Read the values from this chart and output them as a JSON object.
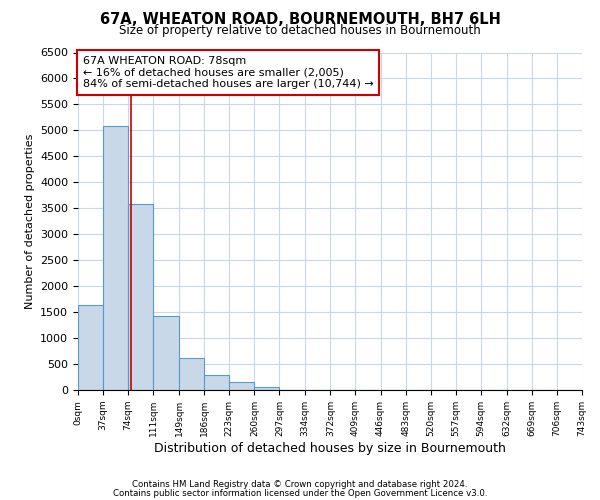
{
  "title": "67A, WHEATON ROAD, BOURNEMOUTH, BH7 6LH",
  "subtitle": "Size of property relative to detached houses in Bournemouth",
  "xlabel": "Distribution of detached houses by size in Bournemouth",
  "ylabel": "Number of detached properties",
  "bin_edges": [
    0,
    37,
    74,
    111,
    149,
    186,
    223,
    260,
    297,
    334,
    372,
    409,
    446,
    483,
    520,
    557,
    594,
    632,
    669,
    706,
    743
  ],
  "bin_counts": [
    1630,
    5080,
    3590,
    1430,
    610,
    295,
    155,
    55,
    0,
    0,
    0,
    0,
    0,
    0,
    0,
    0,
    0,
    0,
    0,
    0
  ],
  "bar_color": "#c8d8e8",
  "bar_edge_color": "#5a9ac8",
  "property_line_x": 78,
  "property_line_color": "#cc0000",
  "annotation_text_line1": "67A WHEATON ROAD: 78sqm",
  "annotation_text_line2": "← 16% of detached houses are smaller (2,005)",
  "annotation_text_line3": "84% of semi-detached houses are larger (10,744) →",
  "ylim": [
    0,
    6500
  ],
  "yticks": [
    0,
    500,
    1000,
    1500,
    2000,
    2500,
    3000,
    3500,
    4000,
    4500,
    5000,
    5500,
    6000,
    6500
  ],
  "footer_line1": "Contains HM Land Registry data © Crown copyright and database right 2024.",
  "footer_line2": "Contains public sector information licensed under the Open Government Licence v3.0.",
  "bg_color": "#ffffff",
  "grid_color": "#c8d8e8",
  "tick_labels": [
    "0sqm",
    "37sqm",
    "74sqm",
    "111sqm",
    "149sqm",
    "186sqm",
    "223sqm",
    "260sqm",
    "297sqm",
    "334sqm",
    "372sqm",
    "409sqm",
    "446sqm",
    "483sqm",
    "520sqm",
    "557sqm",
    "594sqm",
    "632sqm",
    "669sqm",
    "706sqm",
    "743sqm"
  ]
}
